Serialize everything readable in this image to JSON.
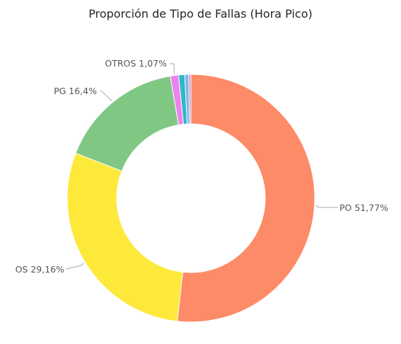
{
  "chart_data": {
    "type": "pie",
    "title": "Proporción de Tipo de Fallas (Hora Pico)",
    "donut": true,
    "slices": [
      {
        "name": "PO",
        "value": 51.77,
        "label": "PO 51,77%",
        "color": "#FD8B67",
        "labeled": true
      },
      {
        "name": "OS",
        "value": 29.16,
        "label": "OS 29,16%",
        "color": "#FEE93B",
        "labeled": true
      },
      {
        "name": "PG",
        "value": 16.4,
        "label": "PG 16,4%",
        "color": "#81C784",
        "labeled": true
      },
      {
        "name": "OTROS",
        "value": 1.07,
        "label": "OTROS 1,07%",
        "color": "#EE82EE",
        "labeled": true
      },
      {
        "name": "",
        "value": 0.8,
        "label": "",
        "color": "#2EB8C9",
        "labeled": false
      },
      {
        "name": "",
        "value": 0.5,
        "label": "",
        "color": "#7FB3E0",
        "labeled": false
      },
      {
        "name": "",
        "value": 0.3,
        "label": "",
        "color": "#C39BD3",
        "labeled": false
      }
    ]
  }
}
